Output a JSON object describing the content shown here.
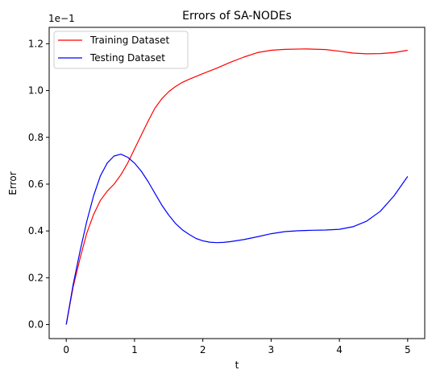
{
  "chart_data": {
    "type": "line",
    "title": "Errors of SA-NODEs",
    "xlabel": "t",
    "ylabel": "Error",
    "offset_text": "1e−1",
    "xlim": [
      -0.25,
      5.25
    ],
    "ylim": [
      -0.06,
      1.27
    ],
    "xticks": [
      0,
      1,
      2,
      3,
      4,
      5
    ],
    "xtick_labels": [
      "0",
      "1",
      "2",
      "3",
      "4",
      "5"
    ],
    "yticks": [
      0.0,
      0.2,
      0.4,
      0.6,
      0.8,
      1.0,
      1.2
    ],
    "ytick_labels": [
      "0.0",
      "0.2",
      "0.4",
      "0.6",
      "0.8",
      "1.0",
      "1.2"
    ],
    "grid": false,
    "legend_position": "upper-left",
    "series": [
      {
        "name": "Training Dataset",
        "color": "#ff0000",
        "x": [
          0.0,
          0.1,
          0.2,
          0.3,
          0.4,
          0.5,
          0.6,
          0.7,
          0.8,
          0.9,
          1.0,
          1.1,
          1.2,
          1.3,
          1.4,
          1.5,
          1.6,
          1.7,
          1.8,
          1.9,
          2.0,
          2.2,
          2.4,
          2.6,
          2.8,
          3.0,
          3.2,
          3.5,
          3.8,
          4.0,
          4.2,
          4.4,
          4.6,
          4.8,
          5.0
        ],
        "y": [
          0.0,
          0.16,
          0.28,
          0.39,
          0.47,
          0.53,
          0.57,
          0.6,
          0.64,
          0.69,
          0.75,
          0.81,
          0.87,
          0.925,
          0.965,
          0.995,
          1.017,
          1.035,
          1.048,
          1.06,
          1.072,
          1.095,
          1.12,
          1.143,
          1.162,
          1.172,
          1.176,
          1.178,
          1.175,
          1.168,
          1.16,
          1.157,
          1.158,
          1.162,
          1.172
        ]
      },
      {
        "name": "Testing Dataset",
        "color": "#0000ff",
        "x": [
          0.0,
          0.1,
          0.2,
          0.3,
          0.4,
          0.5,
          0.6,
          0.7,
          0.8,
          0.9,
          1.0,
          1.1,
          1.2,
          1.3,
          1.4,
          1.5,
          1.6,
          1.7,
          1.8,
          1.9,
          2.0,
          2.1,
          2.2,
          2.3,
          2.4,
          2.6,
          2.8,
          3.0,
          3.2,
          3.4,
          3.6,
          3.8,
          4.0,
          4.2,
          4.4,
          4.6,
          4.8,
          5.0
        ],
        "y": [
          0.0,
          0.17,
          0.31,
          0.44,
          0.55,
          0.635,
          0.69,
          0.72,
          0.728,
          0.715,
          0.69,
          0.655,
          0.61,
          0.56,
          0.51,
          0.468,
          0.432,
          0.405,
          0.385,
          0.368,
          0.358,
          0.352,
          0.35,
          0.351,
          0.354,
          0.363,
          0.375,
          0.388,
          0.397,
          0.401,
          0.403,
          0.404,
          0.407,
          0.418,
          0.442,
          0.484,
          0.55,
          0.633
        ]
      }
    ]
  }
}
